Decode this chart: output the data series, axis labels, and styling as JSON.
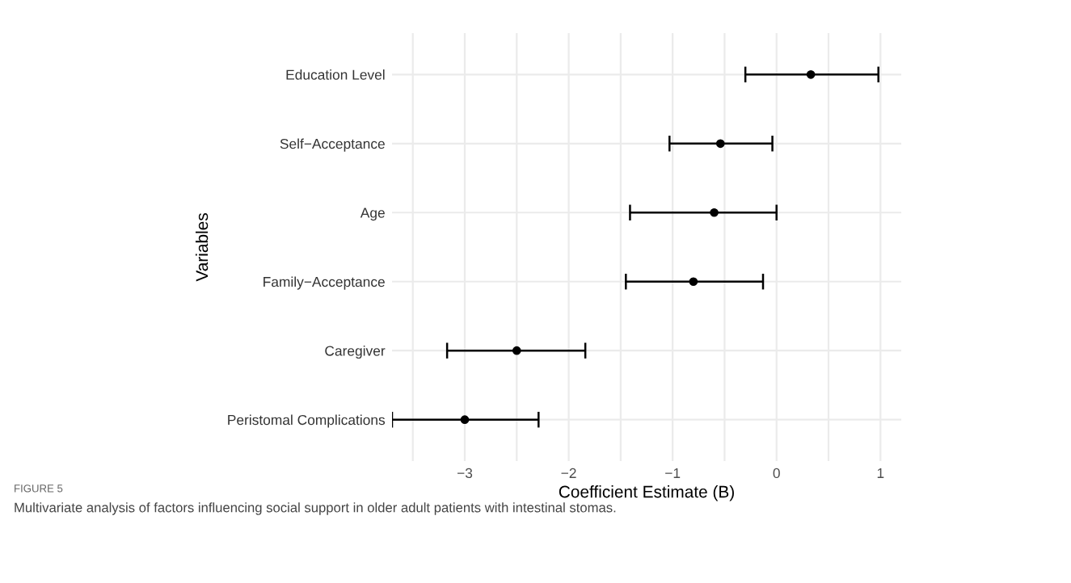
{
  "chart_data": {
    "type": "scatter",
    "orientation": "horizontal",
    "xlabel": "Coefficient Estimate (B)",
    "ylabel": "Variables",
    "categories": [
      "Education Level",
      "Self−Acceptance",
      "Age",
      "Family−Acceptance",
      "Caregiver",
      "Peristomal Complications"
    ],
    "values": [
      0.33,
      -0.54,
      -0.6,
      -0.8,
      -2.5,
      -3.0
    ],
    "errors": [
      [
        -0.3,
        0.98
      ],
      [
        -1.03,
        -0.04
      ],
      [
        -1.41,
        0.0
      ],
      [
        -1.45,
        -0.13
      ],
      [
        -3.17,
        -1.84
      ],
      [
        -3.7,
        -2.29
      ]
    ],
    "color": "#000000",
    "marker": "circle",
    "xlim": [
      -3.7,
      1.2
    ],
    "xticks": [
      {
        "value": -3.5,
        "label": null
      },
      {
        "value": -3,
        "label": "−3"
      },
      {
        "value": -2.5,
        "label": null
      },
      {
        "value": -2,
        "label": "−2"
      },
      {
        "value": -1.5,
        "label": null
      },
      {
        "value": -1,
        "label": "−1"
      },
      {
        "value": -0.5,
        "label": null
      },
      0,
      {
        "value": 0.5,
        "label": null
      },
      1
    ],
    "grid": true,
    "annotations": [
      "FIGURE 5",
      "Multivariate analysis of factors influencing social support in older adult patients with intestinal stomas."
    ]
  }
}
